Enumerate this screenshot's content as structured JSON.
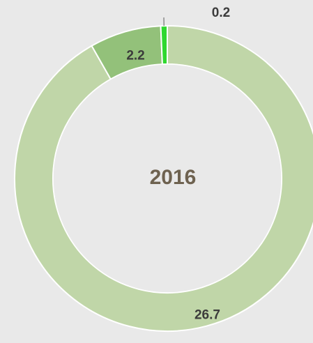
{
  "chart_data": {
    "type": "donut",
    "center_label": "2016",
    "values": [
      26.7,
      2.2,
      0.2
    ],
    "colors": [
      "#c0d6a8",
      "#93c17a",
      "#2fd82f"
    ]
  }
}
